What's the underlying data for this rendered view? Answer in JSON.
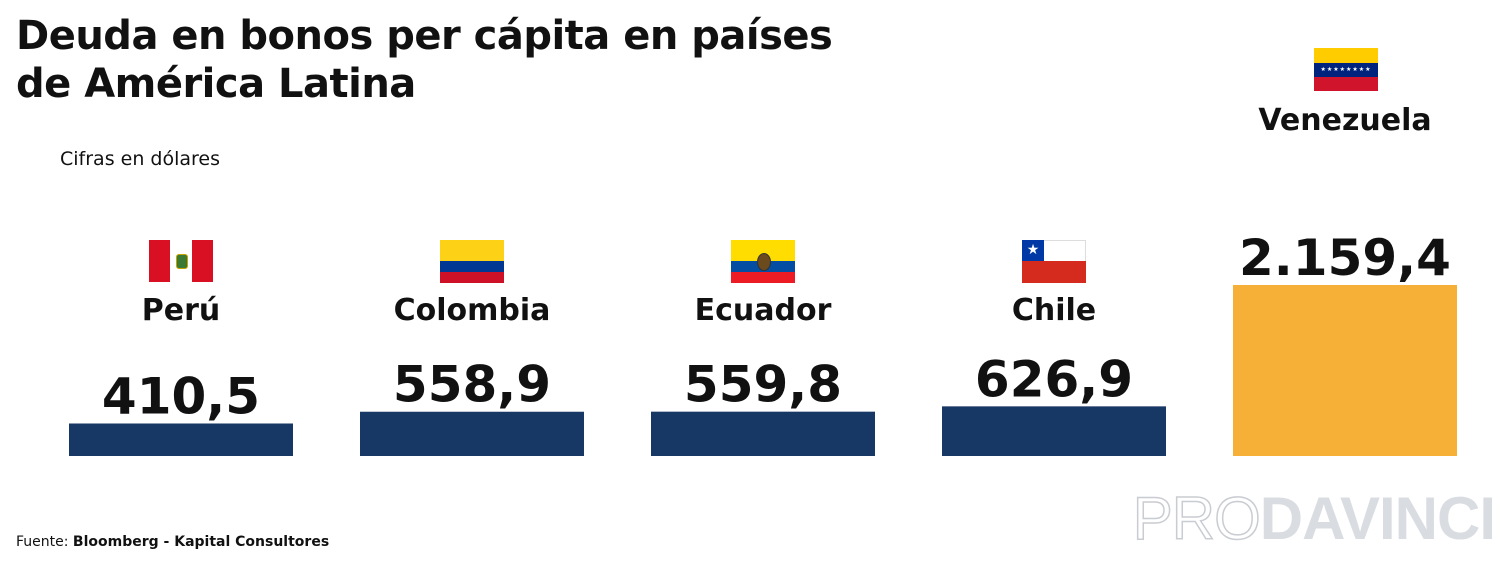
{
  "title": "Deuda en bonos per cápita en países de América Latina",
  "subtitle": "Cifras en dólares",
  "source": {
    "label": "Fuente: ",
    "text": "Bloomberg - Kapital Consultores"
  },
  "watermark": {
    "part1": "PRO",
    "part2": "DAVINCI"
  },
  "colors": {
    "bar_default": "#173764",
    "bar_highlight": "#f6b037",
    "text": "#111111"
  },
  "chart_data": {
    "type": "bar",
    "categories": [
      "Perú",
      "Colombia",
      "Ecuador",
      "Chile",
      "Venezuela"
    ],
    "values": [
      410.5,
      558.9,
      559.8,
      626.9,
      2159.4
    ],
    "value_labels": [
      "410,5",
      "558,9",
      "559,8",
      "626,9",
      "2.159,4"
    ],
    "highlight": "Venezuela",
    "unit": "Cifras en dólares",
    "ylim": [
      0,
      2159.4
    ],
    "grid": false,
    "title": "Deuda en bonos per cápita en países de América Latina"
  },
  "flags": [
    {
      "country": "Perú",
      "icon": "peru-flag-icon"
    },
    {
      "country": "Colombia",
      "icon": "colombia-flag-icon"
    },
    {
      "country": "Ecuador",
      "icon": "ecuador-flag-icon"
    },
    {
      "country": "Chile",
      "icon": "chile-flag-icon"
    },
    {
      "country": "Venezuela",
      "icon": "venezuela-flag-icon"
    }
  ]
}
